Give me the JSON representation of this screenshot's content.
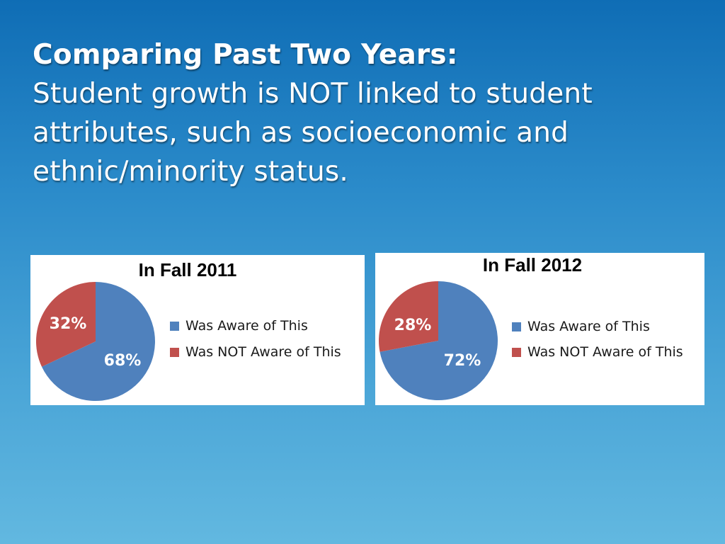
{
  "slide": {
    "heading_bold": "Comparing Past Two Years:",
    "heading_line1": "Student growth is NOT linked to student",
    "heading_line2": "attributes, such as socioeconomic and",
    "heading_line3": "ethnic/minority status."
  },
  "chart_data": [
    {
      "type": "pie",
      "title": "In Fall 2011",
      "categories": [
        "Was Aware of This",
        "Was NOT Aware of This"
      ],
      "values": [
        68,
        32
      ],
      "data_labels": [
        "68%",
        "32%"
      ],
      "colors": [
        "#4f81bd",
        "#c0504d"
      ],
      "legend": "right"
    },
    {
      "type": "pie",
      "title": "In Fall 2012",
      "categories": [
        "Was Aware of This",
        "Was NOT Aware of This"
      ],
      "values": [
        72,
        28
      ],
      "data_labels": [
        "72%",
        "28%"
      ],
      "colors": [
        "#4f81bd",
        "#c0504d"
      ],
      "legend": "right"
    }
  ]
}
